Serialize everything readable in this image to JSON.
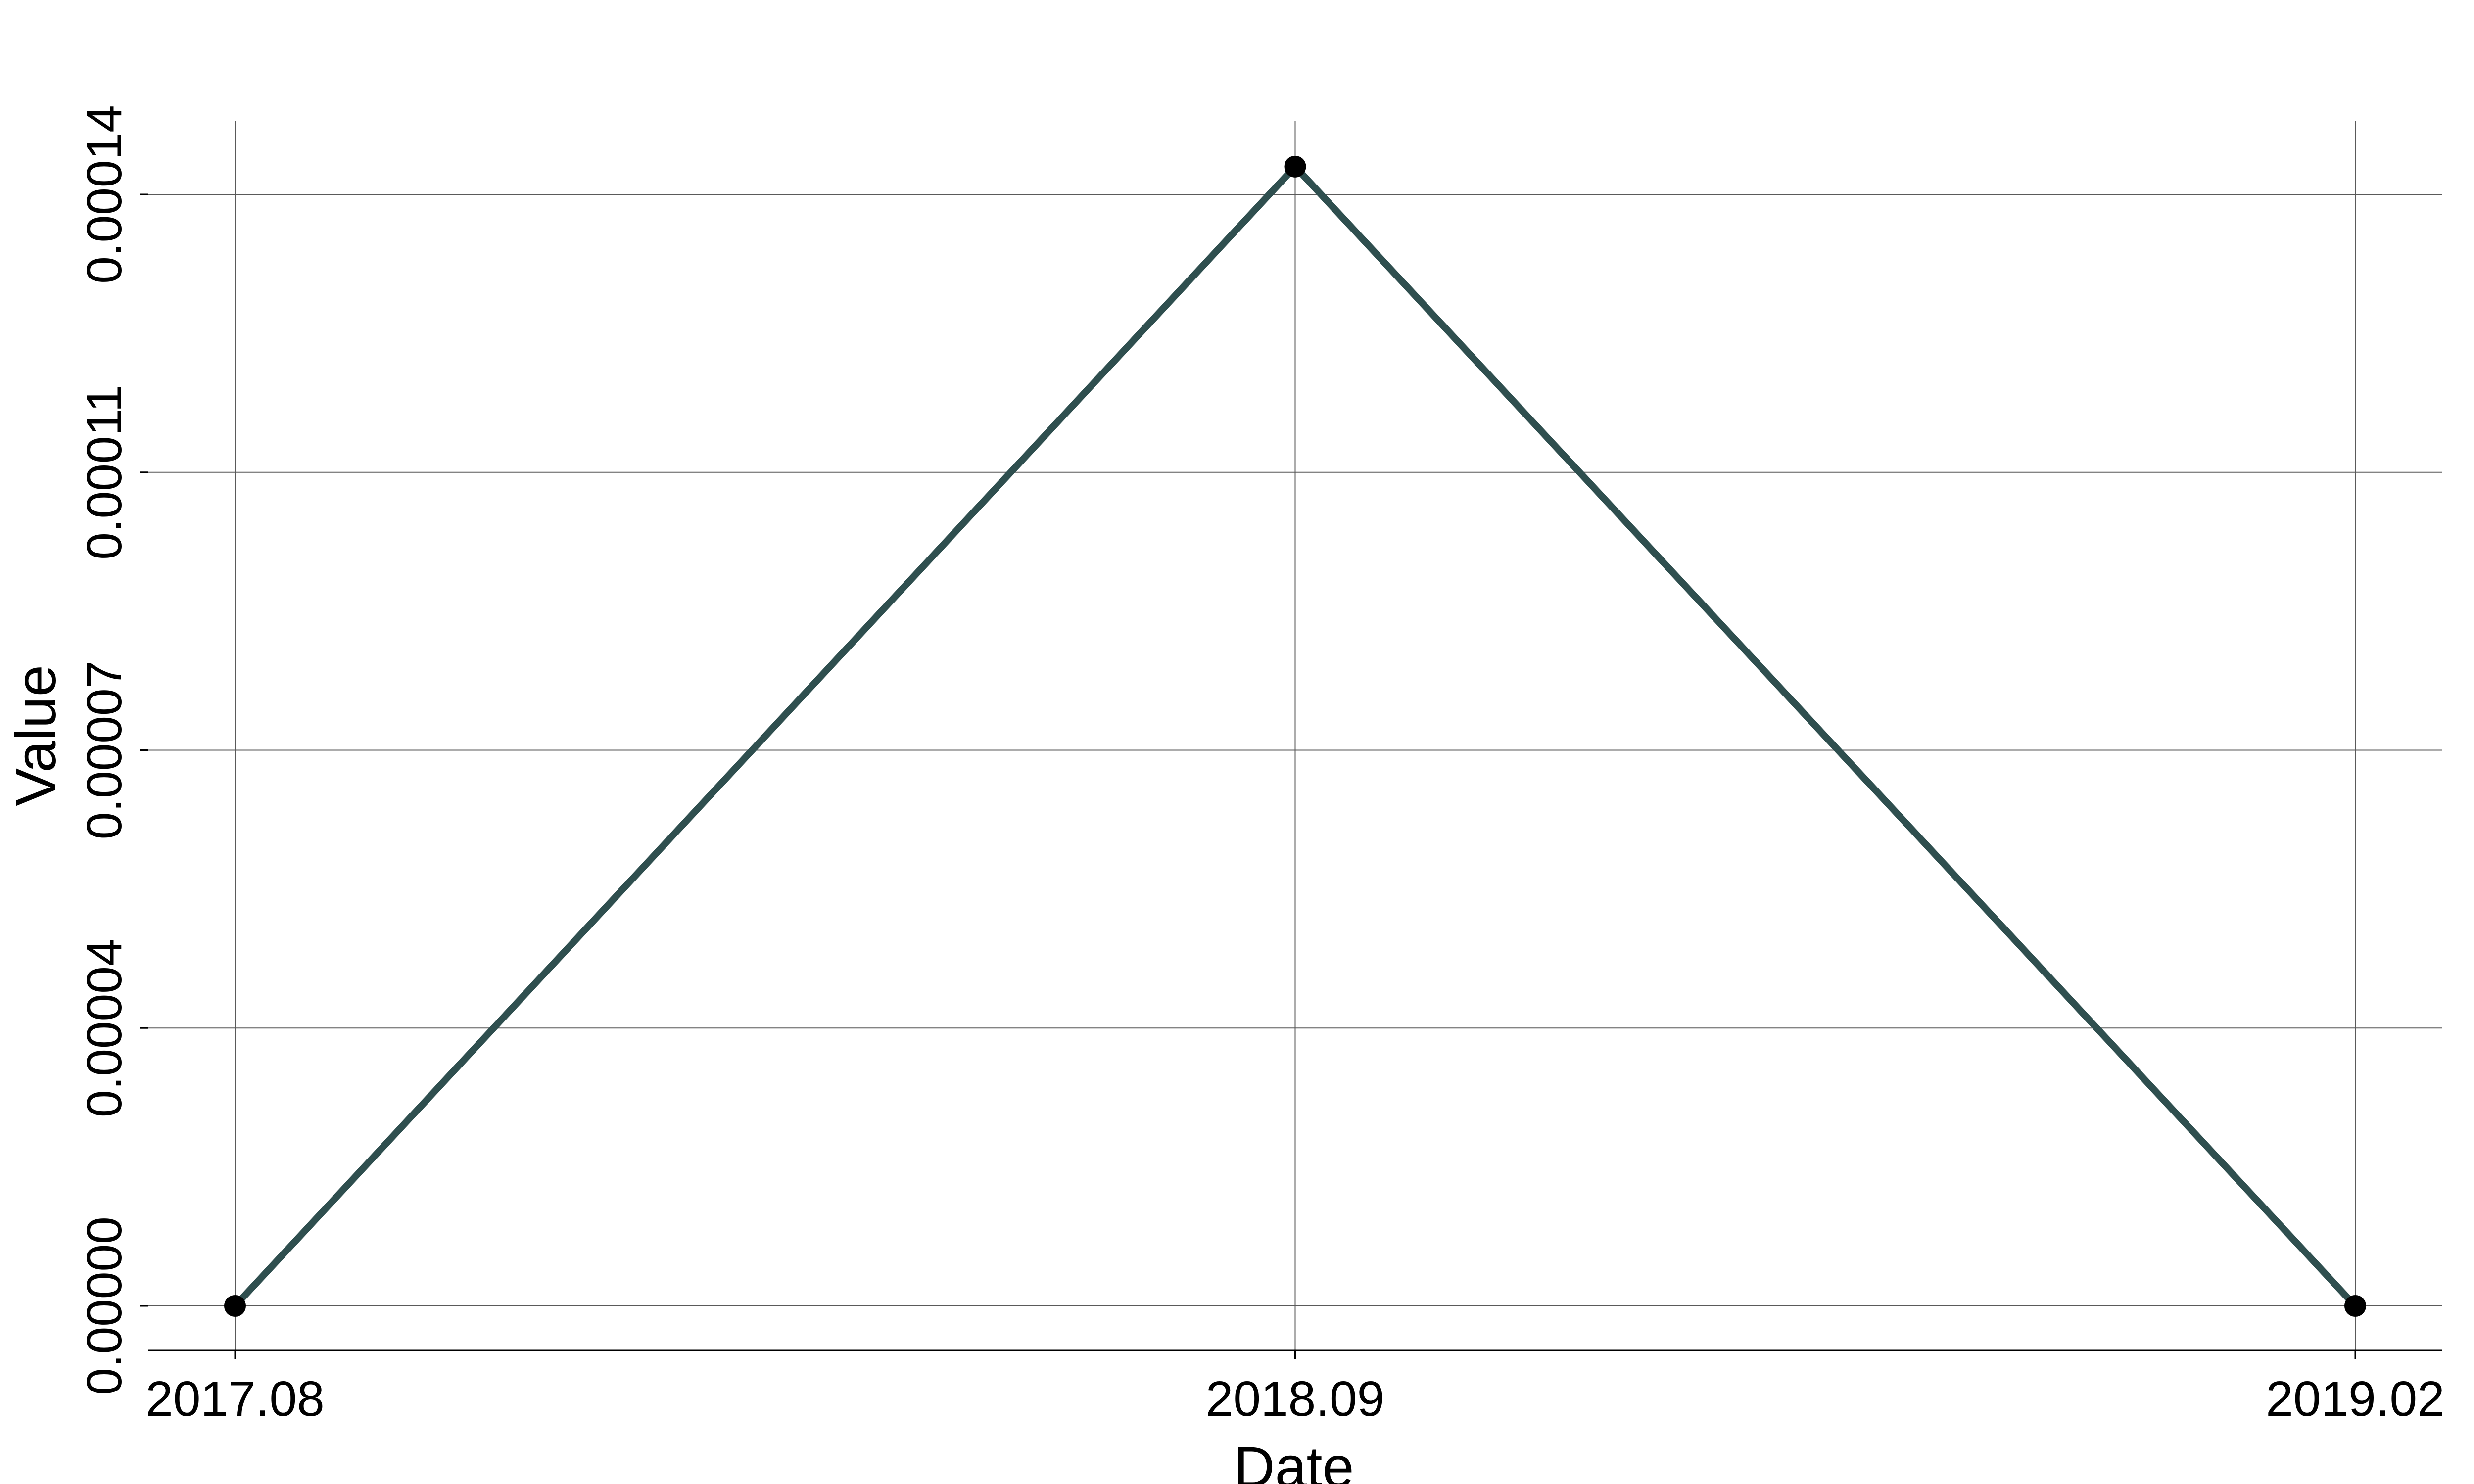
{
  "chart_data": {
    "type": "line",
    "title": "",
    "xlabel": "Date",
    "ylabel": "Value",
    "x": [
      "2017.08",
      "2018.09",
      "2019.02"
    ],
    "series": [
      {
        "values": [
          0.0,
          0.0001435,
          0.0
        ]
      }
    ],
    "x_ticks": [
      "2017.08",
      "2018.09",
      "2019.02"
    ],
    "y_ticks": [
      "0.00000",
      "0.00004",
      "0.00007",
      "0.00011",
      "0.00014"
    ],
    "y_tick_values": [
      0.0,
      3.5e-05,
      7e-05,
      0.000105,
      0.00014
    ],
    "ylim": [
      -6.5e-06,
      0.00015
    ],
    "grid": true,
    "legend": "none",
    "colors": {
      "line": "#2f4f4f",
      "marker": "#000000",
      "grid": "#5a5a5a",
      "axis": "#000000"
    }
  }
}
